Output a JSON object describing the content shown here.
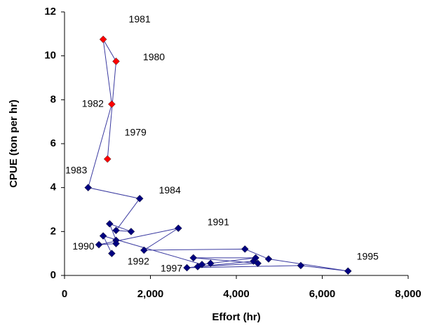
{
  "chart_data": {
    "type": "scatter-line",
    "x_label": "Effort (hr)",
    "y_label": "CPUE (ton per hr)",
    "x": [
      1000,
      1200,
      900,
      1100,
      550,
      1750,
      1200,
      1550,
      1050,
      1200,
      1200,
      800,
      2650,
      1850,
      4200,
      4750,
      6600,
      5500,
      2850,
      4400,
      3100,
      4500,
      3000,
      4450,
      3400,
      3200,
      900,
      1100
    ],
    "values": [
      5.3,
      9.75,
      10.75,
      7.8,
      4.0,
      3.5,
      2.05,
      2.0,
      2.35,
      1.6,
      1.45,
      1.4,
      2.15,
      1.15,
      1.2,
      0.75,
      0.2,
      0.45,
      0.35,
      0.65,
      0.4,
      0.55,
      0.8,
      0.8,
      0.55,
      0.5,
      1.8,
      1.0
    ],
    "point_labels": [
      "1979",
      "1980",
      "1981",
      "1982",
      "1983",
      "1984",
      null,
      null,
      null,
      null,
      null,
      "1990",
      "1991",
      "1992",
      null,
      null,
      "1995",
      null,
      "1997",
      null,
      null,
      null,
      null,
      null,
      null,
      null,
      null,
      null
    ],
    "marker_colors": [
      "#ff0000",
      "#ff0000",
      "#ff0000",
      "#ff0000",
      "#000080",
      "#000080",
      "#000080",
      "#000080",
      "#000080",
      "#000080",
      "#000080",
      "#000080",
      "#000080",
      "#000080",
      "#000080",
      "#000080",
      "#000080",
      "#000080",
      "#000080",
      "#000080",
      "#000080",
      "#000080",
      "#000080",
      "#000080",
      "#000080",
      "#000080",
      "#000080",
      "#000080"
    ],
    "line_color": "#3a3aa0",
    "xlim": [
      0,
      8000
    ],
    "ylim": [
      0,
      12
    ],
    "xticks": [
      0,
      {
        "value": 2000,
        "label": "2,000"
      },
      {
        "value": 4000,
        "label": "4,000"
      },
      {
        "value": 6000,
        "label": "6,000"
      },
      {
        "value": 8000,
        "label": "8,000"
      }
    ],
    "yticks": [
      0,
      2,
      4,
      6,
      8,
      10,
      12
    ]
  }
}
